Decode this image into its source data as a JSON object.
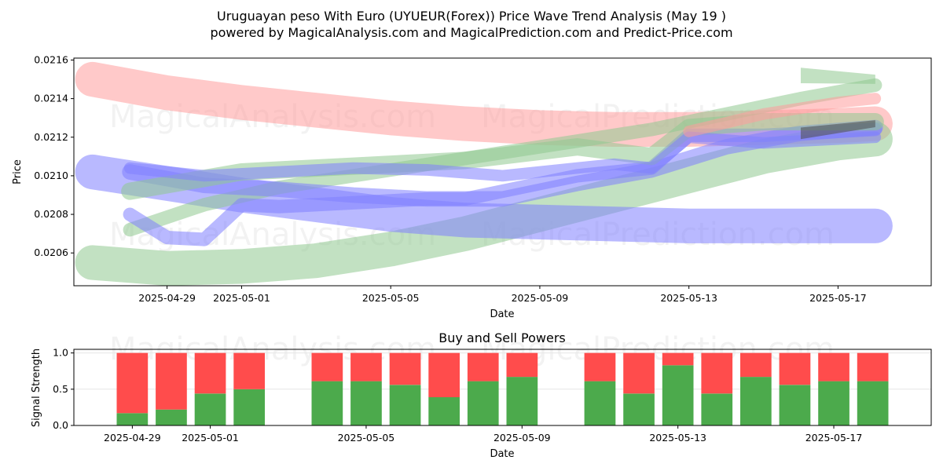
{
  "title": "Uruguayan peso With Euro (UYUEUR(Forex)) Price Wave Trend Analysis (May 19 )",
  "subtitle": "powered by MagicalAnalysis.com and MagicalPrediction.com and Predict-Price.com",
  "watermark": [
    "MagicalAnalysis.com",
    "MagicalPrediction.com"
  ],
  "colors": {
    "red": "#ff9c9c",
    "green": "#8fc98f",
    "blue": "#8080ff",
    "buy": "#4caa4c",
    "sell": "#ff4c4c"
  },
  "chart_data": [
    {
      "type": "line",
      "name": "price-wave-chart",
      "xlabel": "Date",
      "ylabel": "Price",
      "x_ticks": [
        "2025-04-29",
        "2025-05-01",
        "2025-05-05",
        "2025-05-09",
        "2025-05-13",
        "2025-05-17"
      ],
      "y_ticks": [
        "0.0206",
        "0.0208",
        "0.0210",
        "0.0212",
        "0.0214",
        "0.0216"
      ],
      "xlim": [
        "2025-04-26T12:00",
        "2025-05-19T12:00"
      ],
      "ylim": [
        0.02043,
        0.02161
      ],
      "grid": false,
      "bands": [
        {
          "color": "red",
          "x": [
            "2025-04-27",
            "2025-04-29",
            "2025-05-01",
            "2025-05-03",
            "2025-05-05",
            "2025-05-07",
            "2025-05-09",
            "2025-05-11",
            "2025-05-13",
            "2025-05-15",
            "2025-05-17",
            "2025-05-18"
          ],
          "y": [
            0.0215,
            0.02143,
            0.02138,
            0.02134,
            0.0213,
            0.02127,
            0.02125,
            0.02124,
            0.02124,
            0.02125,
            0.02126,
            0.02127
          ],
          "width": 0.00018
        },
        {
          "color": "green",
          "x": [
            "2025-04-27",
            "2025-04-29",
            "2025-05-01",
            "2025-05-03",
            "2025-05-05",
            "2025-05-07",
            "2025-05-09",
            "2025-05-11",
            "2025-05-13",
            "2025-05-15",
            "2025-05-17",
            "2025-05-18"
          ],
          "y": [
            0.02055,
            0.02052,
            0.02053,
            0.02056,
            0.02062,
            0.0207,
            0.0208,
            0.0209,
            0.021,
            0.0211,
            0.02117,
            0.02119
          ],
          "width": 0.00018
        },
        {
          "color": "blue",
          "x": [
            "2025-04-27",
            "2025-04-29",
            "2025-05-01",
            "2025-05-03",
            "2025-05-05",
            "2025-05-07",
            "2025-05-09",
            "2025-05-11",
            "2025-05-13",
            "2025-05-15",
            "2025-05-17",
            "2025-05-18"
          ],
          "y": [
            0.02102,
            0.02096,
            0.0209,
            0.02085,
            0.0208,
            0.02077,
            0.02076,
            0.02075,
            0.02074,
            0.02074,
            0.02074,
            0.02074
          ],
          "width": 0.00018
        },
        {
          "color": "green",
          "x": [
            "2025-04-28",
            "2025-04-30",
            "2025-05-02",
            "2025-05-04",
            "2025-05-06",
            "2025-05-08",
            "2025-05-10",
            "2025-05-12",
            "2025-05-14",
            "2025-05-16",
            "2025-05-18"
          ],
          "y": [
            0.02072,
            0.02085,
            0.02094,
            0.021,
            0.02106,
            0.02112,
            0.02118,
            0.02124,
            0.02132,
            0.0214,
            0.02147
          ],
          "width": 7e-05
        },
        {
          "color": "blue",
          "x": [
            "2025-04-28",
            "2025-04-30",
            "2025-05-02",
            "2025-05-04",
            "2025-05-06",
            "2025-05-08",
            "2025-05-10",
            "2025-05-12",
            "2025-05-14",
            "2025-05-16",
            "2025-05-18"
          ],
          "y": [
            0.02102,
            0.02095,
            0.02093,
            0.0209,
            0.02088,
            0.02088,
            0.02096,
            0.02103,
            0.02115,
            0.02122,
            0.02125
          ],
          "width": 8e-05
        },
        {
          "color": "blue",
          "x": [
            "2025-04-28",
            "2025-04-29",
            "2025-04-30",
            "2025-05-01",
            "2025-05-02",
            "2025-05-04",
            "2025-05-06",
            "2025-05-07",
            "2025-05-08",
            "2025-05-10",
            "2025-05-11",
            "2025-05-12",
            "2025-05-13",
            "2025-05-15",
            "2025-05-18"
          ],
          "y": [
            0.0208,
            0.02068,
            0.02067,
            0.02085,
            0.02084,
            0.02086,
            0.02088,
            0.02088,
            0.02092,
            0.021,
            0.02102,
            0.02104,
            0.02121,
            0.02121,
            0.02124
          ],
          "width": 7e-05
        },
        {
          "color": "green",
          "x": [
            "2025-04-28",
            "2025-05-01",
            "2025-05-04",
            "2025-05-07",
            "2025-05-10",
            "2025-05-12",
            "2025-05-13",
            "2025-05-15",
            "2025-05-18"
          ],
          "y": [
            0.02092,
            0.02102,
            0.02105,
            0.02108,
            0.02115,
            0.0211,
            0.02125,
            0.02128,
            0.02128
          ],
          "width": 9e-05
        },
        {
          "color": "blue",
          "x": [
            "2025-04-28",
            "2025-04-30",
            "2025-05-02",
            "2025-05-04",
            "2025-05-06",
            "2025-05-08",
            "2025-05-10",
            "2025-05-11",
            "2025-05-12",
            "2025-05-13",
            "2025-05-15",
            "2025-05-18"
          ],
          "y": [
            0.02104,
            0.021,
            0.02102,
            0.02104,
            0.02103,
            0.021,
            0.02104,
            0.02106,
            0.02104,
            0.0212,
            0.02117,
            0.0212
          ],
          "width": 6e-05
        },
        {
          "color": "red",
          "x": [
            "2025-05-13",
            "2025-05-15",
            "2025-05-17",
            "2025-05-18"
          ],
          "y": [
            0.02123,
            0.02132,
            0.02138,
            0.0214
          ],
          "width": 6e-05
        }
      ],
      "arrows": [
        {
          "color": "green",
          "x": [
            "2025-05-16",
            "2025-05-18"
          ],
          "y": [
            0.02152,
            0.0215
          ],
          "width": 8e-05
        },
        {
          "color": "dark",
          "x": [
            "2025-05-16",
            "2025-05-18"
          ],
          "y": [
            0.02122,
            0.02127
          ],
          "width": 6e-05
        }
      ]
    },
    {
      "type": "bar",
      "name": "buy-sell-powers-chart",
      "title": "Buy and Sell Powers",
      "xlabel": "Date",
      "ylabel": "Signal Strength",
      "x_ticks": [
        "2025-04-29",
        "2025-05-01",
        "2025-05-05",
        "2025-05-09",
        "2025-05-13",
        "2025-05-17"
      ],
      "y_ticks": [
        "0.0",
        "0.5",
        "1.0"
      ],
      "xlim": [
        "2025-04-27T12:00",
        "2025-05-19T12:00"
      ],
      "ylim": [
        0,
        1.05
      ],
      "grid": true,
      "categories": [
        "2025-04-29",
        "2025-04-30",
        "2025-05-01",
        "2025-05-02",
        "2025-05-04",
        "2025-05-05",
        "2025-05-06",
        "2025-05-07",
        "2025-05-08",
        "2025-05-09",
        "2025-05-11",
        "2025-05-12",
        "2025-05-13",
        "2025-05-14",
        "2025-05-15",
        "2025-05-16",
        "2025-05-17",
        "2025-05-18"
      ],
      "series": [
        {
          "values": [
            0.17,
            0.22,
            0.44,
            0.5,
            0.61,
            0.61,
            0.56,
            0.39,
            0.61,
            0.67,
            0.61,
            0.44,
            0.83,
            0.44,
            0.67,
            0.56,
            0.61,
            0.61
          ]
        },
        {
          "values": [
            0.83,
            0.78,
            0.56,
            0.5,
            0.39,
            0.39,
            0.44,
            0.61,
            0.39,
            0.33,
            0.39,
            0.56,
            0.17,
            0.56,
            0.33,
            0.44,
            0.39,
            0.39
          ]
        }
      ]
    }
  ]
}
